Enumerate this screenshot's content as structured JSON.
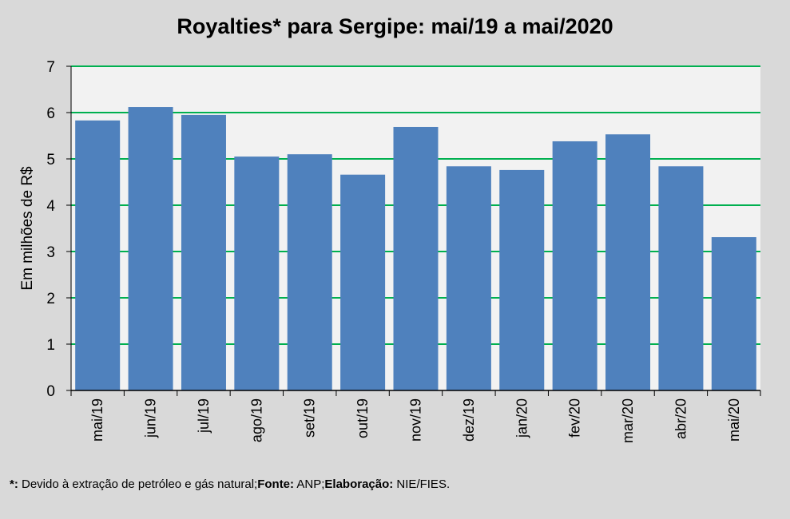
{
  "chart_data": {
    "type": "bar",
    "title": "Royalties* para Sergipe: mai/19 a mai/2020",
    "xlabel": "",
    "ylabel": "Em milhões de R$",
    "ylim": [
      0,
      7
    ],
    "yticks": [
      0,
      1,
      2,
      3,
      4,
      5,
      6,
      7
    ],
    "grid": true,
    "categories": [
      "mai/19",
      "jun/19",
      "jul/19",
      "ago/19",
      "set/19",
      "out/19",
      "nov/19",
      "dez/19",
      "jan/20",
      "fev/20",
      "mar/20",
      "abr/20",
      "mai/20"
    ],
    "values": [
      5.83,
      6.12,
      5.95,
      5.05,
      5.1,
      4.66,
      5.69,
      4.84,
      4.76,
      5.38,
      5.53,
      4.84,
      3.31
    ],
    "colors": {
      "bar": "#4f81bd",
      "grid": "#00b050",
      "plot_bg": "#f2f2f2",
      "page_bg": "#d9d9d9"
    }
  },
  "footnote": {
    "star": "*:",
    "text1": " Devido à extração de petróleo e gás natural;",
    "fonte_label": "Fonte:",
    "fonte": " ANP;",
    "elab_label": "Elaboração:",
    "elab": " NIE/FIES."
  }
}
